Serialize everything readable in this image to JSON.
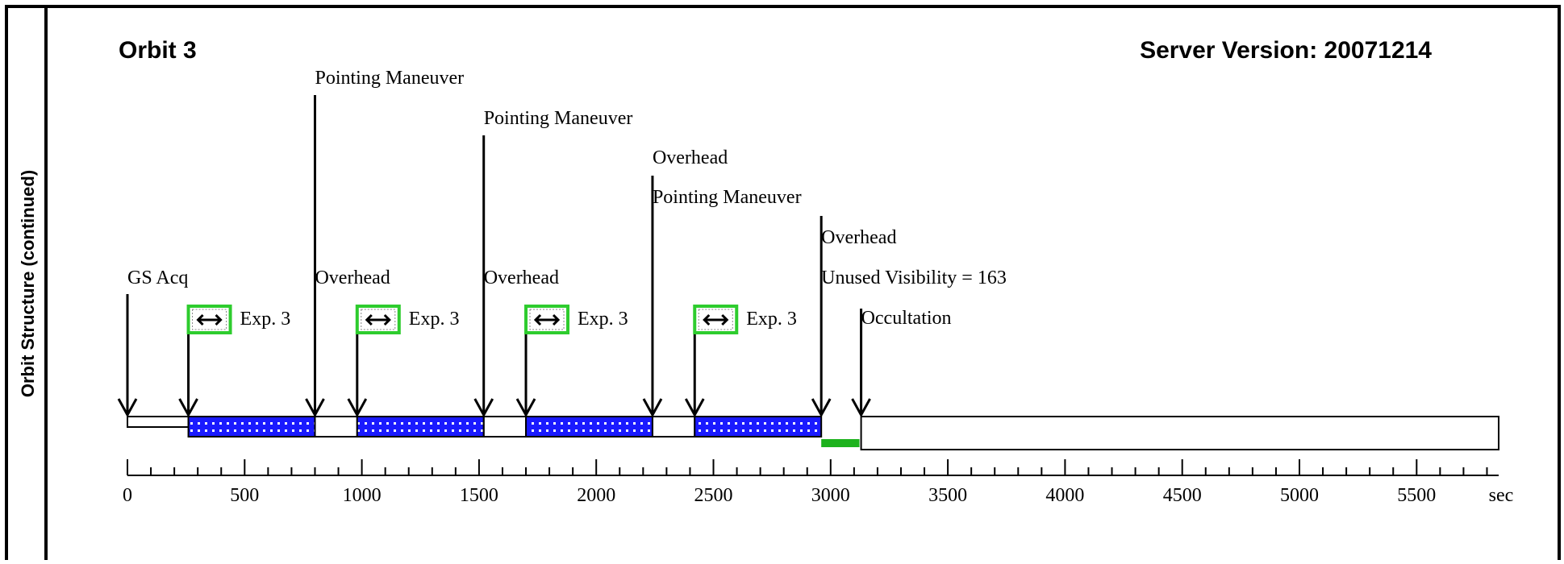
{
  "sidebar_label": "Orbit Structure (continued)",
  "header": {
    "orbit_title": "Orbit 3",
    "server_version": "Server Version: 20071214"
  },
  "colors": {
    "exposure_fill": "#1a1aff",
    "exposure_bg": "#ffffff",
    "exposure_icon_border": "#2ecc2e",
    "unused_visibility": "#1db21d"
  },
  "timeline": {
    "unit": "sec",
    "axis_range": [
      0,
      5850
    ],
    "major_ticks": [
      0,
      500,
      1000,
      1500,
      2000,
      2500,
      3000,
      3500,
      4000,
      4500,
      5000,
      5500
    ],
    "events": [
      {
        "label": "GS Acq",
        "t": 0
      },
      {
        "label": "Pointing Maneuver",
        "t": 800
      },
      {
        "label": "Overhead",
        "t": 800
      },
      {
        "label": "Pointing Maneuver",
        "t": 1520
      },
      {
        "label": "Overhead",
        "t": 1520
      },
      {
        "label": "Overhead",
        "t": 2240
      },
      {
        "label": "Pointing Maneuver",
        "t": 2240
      },
      {
        "label": "Overhead",
        "t": 2960
      },
      {
        "label": "Unused Visibility = 163",
        "t": 2960
      },
      {
        "label": "Occultation",
        "t": 3130
      }
    ],
    "exposures": [
      {
        "label": "Exp. 3",
        "start": 260,
        "end": 800
      },
      {
        "label": "Exp. 3",
        "start": 980,
        "end": 1520
      },
      {
        "label": "Exp. 3",
        "start": 1700,
        "end": 2240
      },
      {
        "label": "Exp. 3",
        "start": 2420,
        "end": 2960
      }
    ],
    "unused_visibility": {
      "start": 2960,
      "end": 3123
    },
    "occultation_end": 5850
  }
}
